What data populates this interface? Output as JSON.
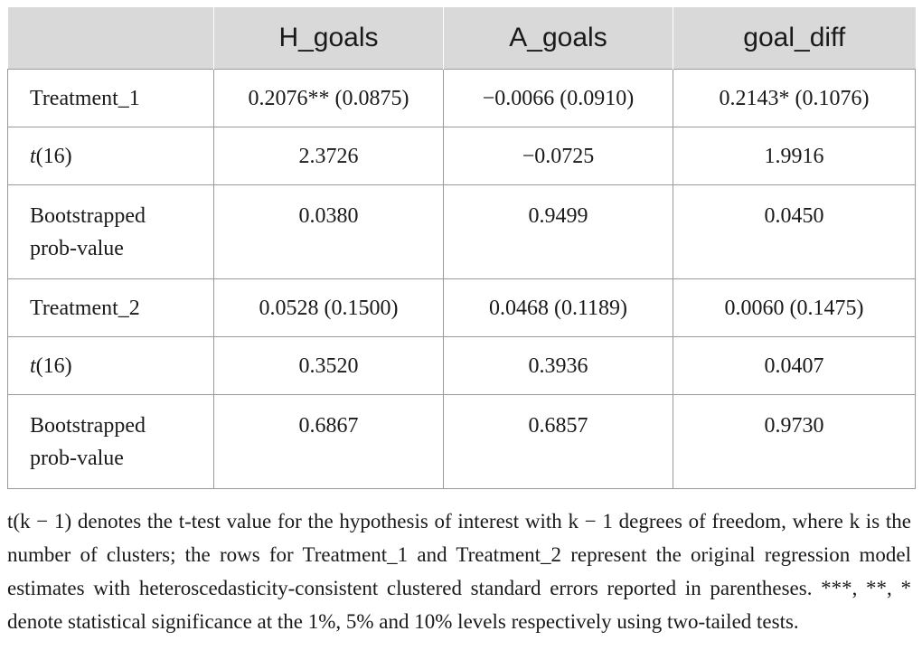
{
  "table": {
    "header": {
      "blank": "",
      "col1": "H_goals",
      "col2": "A_goals",
      "col3": "goal_diff"
    },
    "rows": [
      {
        "label": "Treatment_1",
        "h_goals": "0.2076** (0.0875)",
        "a_goals": "−0.0066 (0.0910)",
        "goal_diff": "0.2143* (0.1076)"
      },
      {
        "label_italic": "t",
        "label_rest": "(16)",
        "h_goals": "2.3726",
        "a_goals": "−0.0725",
        "goal_diff": "1.9916"
      },
      {
        "label_line1": "Bootstrapped",
        "label_line2": "prob-value",
        "h_goals": "0.0380",
        "a_goals": "0.9499",
        "goal_diff": "0.0450"
      },
      {
        "label": "Treatment_2",
        "h_goals": "0.0528 (0.1500)",
        "a_goals": "0.0468 (0.1189)",
        "goal_diff": "0.0060 (0.1475)"
      },
      {
        "label_italic": "t",
        "label_rest": "(16)",
        "h_goals": "0.3520",
        "a_goals": "0.3936",
        "goal_diff": "0.0407"
      },
      {
        "label_line1": "Bootstrapped",
        "label_line2": "prob-value",
        "h_goals": "0.6867",
        "a_goals": "0.6857",
        "goal_diff": "0.9730"
      }
    ]
  },
  "footnote": "t(k − 1) denotes the t-test value for the hypothesis of interest with k − 1 degrees of freedom, where k is the number of clusters; the rows for Treatment_1 and Treatment_2 represent the original regression model estimates with heteroscedasticity-consistent clustered standard errors reported in parentheses. ***, **, * denote statistical significance at the 1%, 5% and 10% levels respectively using two-tailed tests.",
  "colors": {
    "header_bg": "#d9d9d9",
    "border": "#9a9a9a",
    "text": "#1a1a1a"
  }
}
